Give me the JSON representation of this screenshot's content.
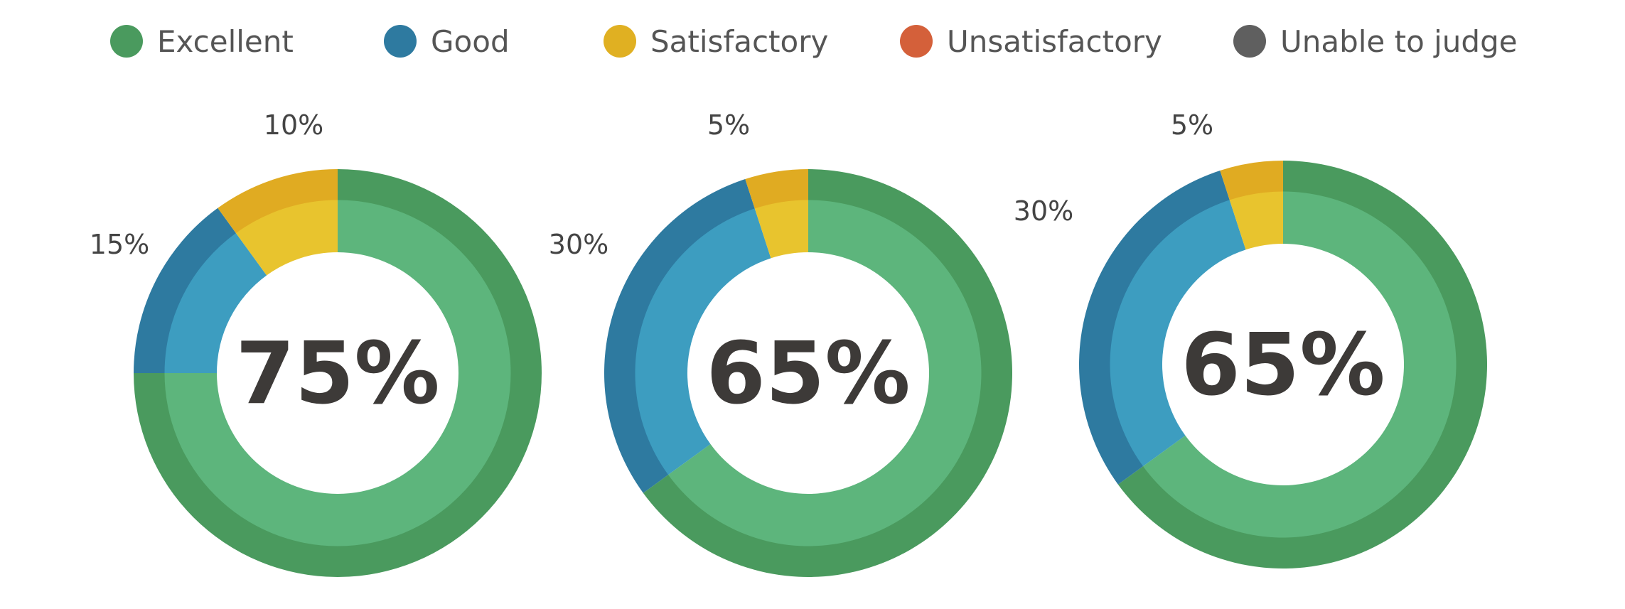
{
  "chart_data": {
    "type": "pie",
    "legend_position": "top",
    "legend": [
      {
        "label": "Excellent",
        "color": "#4a9a5e"
      },
      {
        "label": "Good",
        "color": "#2e7aa0"
      },
      {
        "label": "Satisfactory",
        "color": "#e0b022"
      },
      {
        "label": "Unsatisfactory",
        "color": "#d4603a"
      },
      {
        "label": "Unable to judge",
        "color": "#5f5f5f"
      }
    ],
    "charts": [
      {
        "center_label": "75%",
        "values": {
          "Excellent": 75,
          "Good": 15,
          "Satisfactory": 10,
          "Unsatisfactory": 0,
          "Unable to judge": 0
        },
        "labels": {
          "Good": "15%",
          "Satisfactory": "10%"
        }
      },
      {
        "center_label": "65%",
        "values": {
          "Excellent": 65,
          "Good": 30,
          "Satisfactory": 5,
          "Unsatisfactory": 0,
          "Unable to judge": 0
        },
        "labels": {
          "Good": "30%",
          "Satisfactory": "5%"
        }
      },
      {
        "center_label": "65%",
        "values": {
          "Excellent": 65,
          "Good": 30,
          "Satisfactory": 5,
          "Unsatisfactory": 0,
          "Unable to judge": 0
        },
        "labels": {
          "Good": "30%",
          "Satisfactory": "5%"
        }
      }
    ],
    "shades": {
      "Excellent": [
        "#4a9a5e",
        "#5db57c"
      ],
      "Good": [
        "#2e7aa0",
        "#3d9dc0"
      ],
      "Satisfactory": [
        "#e0ab22",
        "#e8c42e"
      ],
      "Unsatisfactory": [
        "#c8552f",
        "#d4603a"
      ],
      "Unable to judge": [
        "#555555",
        "#6a6a6a"
      ]
    }
  }
}
